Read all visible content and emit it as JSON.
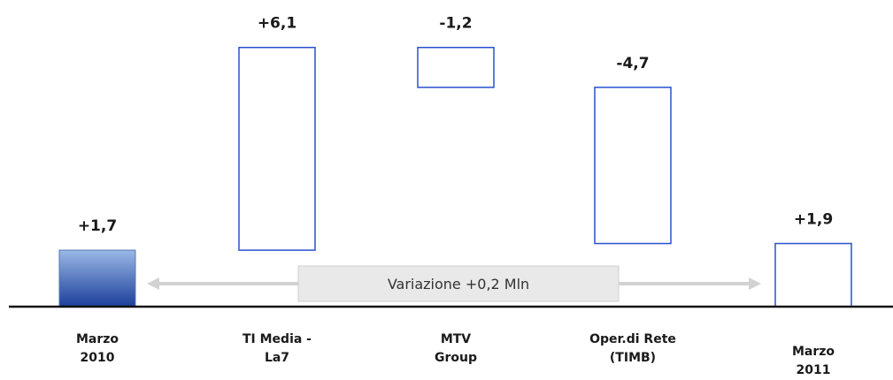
{
  "chart_data": {
    "type": "bar",
    "subtype": "waterfall",
    "categories": [
      [
        "Marzo",
        "2010"
      ],
      [
        "TI Media -",
        "La7"
      ],
      [
        "MTV",
        "Group"
      ],
      [
        "Oper.di Rete",
        "(TIMB)"
      ],
      [
        "Marzo",
        "2011"
      ]
    ],
    "values": [
      1.7,
      6.1,
      -1.2,
      -4.7,
      1.9
    ],
    "value_labels": [
      "+1,7",
      "+6,1",
      "-1,2",
      "-4,7",
      "+1,9"
    ],
    "bar_kind": [
      "total",
      "delta",
      "delta",
      "delta",
      "total"
    ],
    "annotation": "Variazione +0,2 Mln",
    "colors": {
      "outline": "#2a50d0",
      "total_top": "#9ab8e6",
      "total_bottom": "#1c3f9a",
      "axis": "#111111",
      "arrow": "#d2d2d2",
      "note_fill": "#e9e9e9",
      "note_border": "#cfcfcf"
    }
  }
}
